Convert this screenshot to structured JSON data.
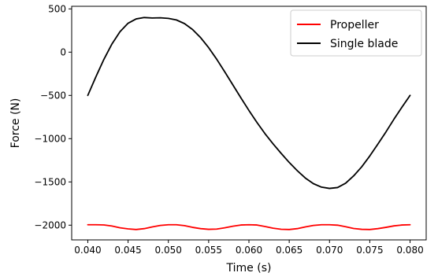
{
  "chart_data": {
    "type": "line",
    "title": "",
    "xlabel": "Time (s)",
    "ylabel": "Force (N)",
    "xlim": [
      0.038,
      0.082
    ],
    "ylim": [
      -2170,
      530
    ],
    "xticks": [
      0.04,
      0.045,
      0.05,
      0.055,
      0.06,
      0.065,
      0.07,
      0.075,
      0.08
    ],
    "xtick_labels": [
      "0.040",
      "0.045",
      "0.050",
      "0.055",
      "0.060",
      "0.065",
      "0.070",
      "0.075",
      "0.080"
    ],
    "yticks": [
      500,
      0,
      -500,
      -1000,
      -1500,
      -2000
    ],
    "ytick_labels": [
      "500",
      "0",
      "−500",
      "−1000",
      "−1500",
      "−2000"
    ],
    "grid": false,
    "legend_position": "top-right",
    "series": [
      {
        "name": "Propeller",
        "color": "#ff0000",
        "x": [
          0.04,
          0.041,
          0.042,
          0.043,
          0.044,
          0.045,
          0.046,
          0.047,
          0.048,
          0.049,
          0.05,
          0.051,
          0.052,
          0.053,
          0.054,
          0.055,
          0.056,
          0.057,
          0.058,
          0.059,
          0.06,
          0.061,
          0.062,
          0.063,
          0.064,
          0.065,
          0.066,
          0.067,
          0.068,
          0.069,
          0.07,
          0.071,
          0.072,
          0.073,
          0.074,
          0.075,
          0.076,
          0.077,
          0.078,
          0.079,
          0.08
        ],
        "y": [
          -1995,
          -1995,
          -1997,
          -2010,
          -2030,
          -2043,
          -2050,
          -2040,
          -2020,
          -2003,
          -1995,
          -1995,
          -2005,
          -2025,
          -2040,
          -2048,
          -2045,
          -2030,
          -2012,
          -1998,
          -1995,
          -1998,
          -2015,
          -2035,
          -2047,
          -2050,
          -2040,
          -2020,
          -2003,
          -1995,
          -1995,
          -2000,
          -2018,
          -2038,
          -2048,
          -2050,
          -2040,
          -2025,
          -2008,
          -1998,
          -1995
        ]
      },
      {
        "name": "Single blade",
        "color": "#000000",
        "x": [
          0.04,
          0.041,
          0.042,
          0.043,
          0.044,
          0.045,
          0.046,
          0.047,
          0.048,
          0.049,
          0.05,
          0.051,
          0.052,
          0.053,
          0.054,
          0.055,
          0.056,
          0.057,
          0.058,
          0.059,
          0.06,
          0.061,
          0.062,
          0.063,
          0.064,
          0.065,
          0.066,
          0.067,
          0.068,
          0.069,
          0.07,
          0.071,
          0.072,
          0.073,
          0.074,
          0.075,
          0.076,
          0.077,
          0.078,
          0.079,
          0.08
        ],
        "y": [
          -500,
          -286,
          -83,
          95,
          237,
          334,
          384,
          400,
          395,
          397,
          390,
          372,
          330,
          262,
          168,
          52,
          -82,
          -228,
          -378,
          -528,
          -674,
          -813,
          -943,
          -1060,
          -1170,
          -1275,
          -1370,
          -1455,
          -1520,
          -1560,
          -1575,
          -1565,
          -1515,
          -1430,
          -1325,
          -1200,
          -1063,
          -923,
          -775,
          -635,
          -500
        ]
      }
    ]
  }
}
